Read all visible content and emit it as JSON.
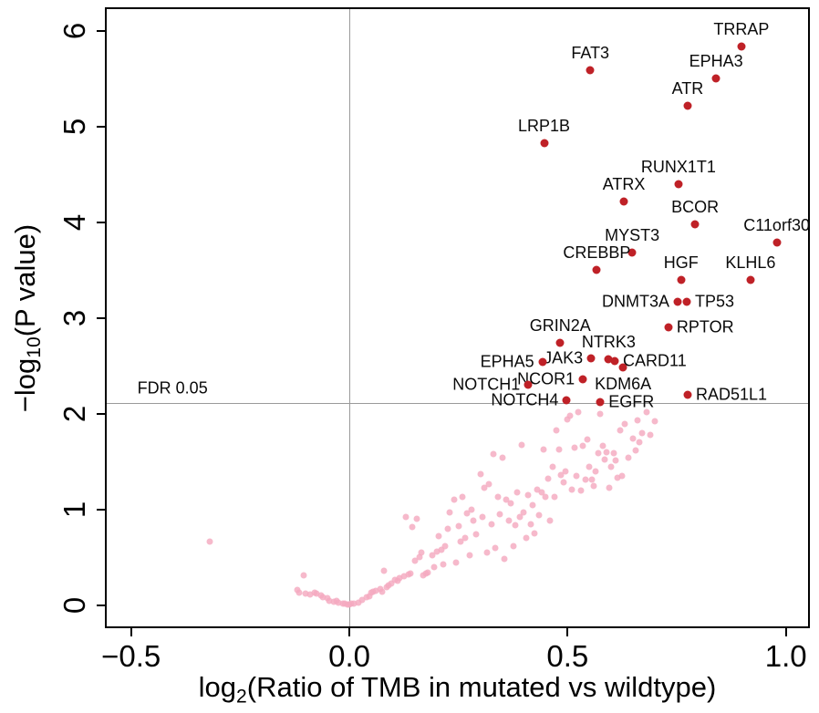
{
  "figure": {
    "colors": {
      "significant": "#bf2127",
      "nonsignificant": "#f4a9bf",
      "gridline": "#9a9a9a",
      "axis": "#000000"
    }
  },
  "chart_data": {
    "type": "scatter",
    "title": "",
    "xlabel_parts": {
      "pre": "log",
      "sub": "2",
      "post": "(Ratio of TMB in mutated vs wildtype)"
    },
    "ylabel_parts": {
      "pre": "−log",
      "sub": "10",
      "post": "(P value)"
    },
    "xlim": [
      -0.56,
      1.055
    ],
    "ylim": [
      -0.24,
      6.245
    ],
    "x_ticks": {
      "values": [
        -0.5,
        0.0,
        0.5,
        1.0
      ],
      "labels": [
        "−0.5",
        "0.0",
        "0.5",
        "1.0"
      ]
    },
    "y_ticks": {
      "values": [
        0,
        1,
        2,
        3,
        4,
        5,
        6
      ],
      "labels": [
        "0",
        "1",
        "2",
        "3",
        "4",
        "5",
        "6"
      ]
    },
    "reference_lines": {
      "vertical_x": 0,
      "fdr_y": 2.11
    },
    "fdr_annotation": {
      "text": "FDR 0.05",
      "x": -0.405,
      "y": 2.26
    },
    "legend_position": "none",
    "grid": "partial",
    "significant_genes": [
      {
        "name": "TRRAP",
        "x": 0.898,
        "y": 5.84,
        "label_pos": "above"
      },
      {
        "name": "FAT3",
        "x": 0.552,
        "y": 5.59,
        "label_pos": "above"
      },
      {
        "name": "EPHA3",
        "x": 0.84,
        "y": 5.5,
        "label_pos": "above"
      },
      {
        "name": "ATR",
        "x": 0.775,
        "y": 5.22,
        "label_pos": "above"
      },
      {
        "name": "LRP1B",
        "x": 0.446,
        "y": 4.83,
        "label_pos": "above"
      },
      {
        "name": "RUNX1T1",
        "x": 0.754,
        "y": 4.4,
        "label_pos": "above"
      },
      {
        "name": "ATRX",
        "x": 0.629,
        "y": 4.22,
        "label_pos": "above"
      },
      {
        "name": "BCOR",
        "x": 0.792,
        "y": 3.98,
        "label_pos": "above"
      },
      {
        "name": "C11orf30",
        "x": 0.979,
        "y": 3.79,
        "label_pos": "above"
      },
      {
        "name": "MYST3",
        "x": 0.648,
        "y": 3.68,
        "label_pos": "above"
      },
      {
        "name": "CREBBP",
        "x": 0.567,
        "y": 3.5,
        "label_pos": "above"
      },
      {
        "name": "HGF",
        "x": 0.76,
        "y": 3.4,
        "label_pos": "above"
      },
      {
        "name": "KLHL6",
        "x": 0.919,
        "y": 3.4,
        "label_pos": "above"
      },
      {
        "name": "DNMT3A",
        "x": 0.752,
        "y": 3.17,
        "label_pos": "left"
      },
      {
        "name": "TP53",
        "x": 0.773,
        "y": 3.17,
        "label_pos": "right"
      },
      {
        "name": "RPTOR",
        "x": 0.731,
        "y": 2.9,
        "label_pos": "right"
      },
      {
        "name": "GRIN2A",
        "x": 0.483,
        "y": 2.74,
        "label_pos": "above"
      },
      {
        "name": "NTRK3",
        "x": 0.594,
        "y": 2.57,
        "label_pos": "above"
      },
      {
        "name": "JAK3",
        "x": 0.554,
        "y": 2.58,
        "label_pos": "left"
      },
      {
        "name": "EPHA5",
        "x": 0.442,
        "y": 2.54,
        "label_pos": "left"
      },
      {
        "name": "CARD11",
        "x": 0.608,
        "y": 2.55,
        "label_pos": "right"
      },
      {
        "name": "KDM6A",
        "x": 0.627,
        "y": 2.48,
        "label_pos": "below"
      },
      {
        "name": "NCOR1",
        "x": 0.535,
        "y": 2.36,
        "label_pos": "left"
      },
      {
        "name": "NOTCH1",
        "x": 0.41,
        "y": 2.3,
        "label_pos": "left"
      },
      {
        "name": "RAD51L1",
        "x": 0.775,
        "y": 2.2,
        "label_pos": "right"
      },
      {
        "name": "NOTCH4",
        "x": 0.498,
        "y": 2.14,
        "label_pos": "left"
      },
      {
        "name": "EGFR",
        "x": 0.575,
        "y": 2.12,
        "label_pos": "right"
      }
    ],
    "background_points": [
      [
        -0.32,
        0.66
      ],
      [
        -0.12,
        0.16
      ],
      [
        -0.115,
        0.13
      ],
      [
        -0.105,
        0.31
      ],
      [
        -0.1,
        0.12
      ],
      [
        -0.09,
        0.11
      ],
      [
        -0.08,
        0.13
      ],
      [
        -0.075,
        0.12
      ],
      [
        -0.065,
        0.1
      ],
      [
        -0.06,
        0.08
      ],
      [
        -0.05,
        0.07
      ],
      [
        -0.045,
        0.05
      ],
      [
        -0.035,
        0.035
      ],
      [
        -0.03,
        0.05
      ],
      [
        -0.025,
        0.025
      ],
      [
        -0.015,
        0.02
      ],
      [
        -0.01,
        0.015
      ],
      [
        -0.005,
        0.005
      ],
      [
        0.0,
        0.01
      ],
      [
        0.005,
        0.02
      ],
      [
        0.01,
        0.015
      ],
      [
        0.02,
        0.03
      ],
      [
        0.03,
        0.055
      ],
      [
        0.04,
        0.08
      ],
      [
        0.045,
        0.09
      ],
      [
        0.05,
        0.13
      ],
      [
        0.055,
        0.145
      ],
      [
        0.06,
        0.155
      ],
      [
        0.07,
        0.17
      ],
      [
        0.075,
        0.145
      ],
      [
        0.08,
        0.36
      ],
      [
        0.085,
        0.19
      ],
      [
        0.09,
        0.21
      ],
      [
        0.095,
        0.23
      ],
      [
        0.105,
        0.26
      ],
      [
        0.11,
        0.255
      ],
      [
        0.115,
        0.28
      ],
      [
        0.125,
        0.3
      ],
      [
        0.13,
        0.92
      ],
      [
        0.135,
        0.32
      ],
      [
        0.14,
        0.33
      ],
      [
        0.145,
        0.82
      ],
      [
        0.15,
        0.46
      ],
      [
        0.155,
        0.9
      ],
      [
        0.16,
        0.5
      ],
      [
        0.165,
        0.55
      ],
      [
        0.17,
        0.31
      ],
      [
        0.175,
        0.33
      ],
      [
        0.18,
        0.34
      ],
      [
        0.19,
        0.52
      ],
      [
        0.195,
        0.4
      ],
      [
        0.2,
        0.56
      ],
      [
        0.205,
        0.72
      ],
      [
        0.21,
        0.58
      ],
      [
        0.215,
        0.43
      ],
      [
        0.22,
        0.62
      ],
      [
        0.225,
        0.8
      ],
      [
        0.23,
        0.97
      ],
      [
        0.24,
        1.1
      ],
      [
        0.245,
        0.45
      ],
      [
        0.25,
        0.83
      ],
      [
        0.255,
        0.66
      ],
      [
        0.26,
        1.13
      ],
      [
        0.265,
        0.7
      ],
      [
        0.27,
        0.96
      ],
      [
        0.275,
        0.52
      ],
      [
        0.28,
        1.0
      ],
      [
        0.285,
        0.88
      ],
      [
        0.29,
        0.74
      ],
      [
        0.3,
        1.37
      ],
      [
        0.305,
        0.92
      ],
      [
        0.31,
        1.23
      ],
      [
        0.315,
        0.55
      ],
      [
        0.32,
        1.26
      ],
      [
        0.325,
        0.85
      ],
      [
        0.33,
        1.58
      ],
      [
        0.335,
        0.6
      ],
      [
        0.34,
        1.13
      ],
      [
        0.345,
        0.95
      ],
      [
        0.35,
        1.54
      ],
      [
        0.355,
        0.48
      ],
      [
        0.36,
        1.1
      ],
      [
        0.365,
        0.88
      ],
      [
        0.37,
        1.06
      ],
      [
        0.375,
        0.62
      ],
      [
        0.38,
        0.84
      ],
      [
        0.385,
        1.18
      ],
      [
        0.39,
        0.92
      ],
      [
        0.395,
        1.67
      ],
      [
        0.4,
        0.97
      ],
      [
        0.405,
        0.7
      ],
      [
        0.41,
        1.15
      ],
      [
        0.415,
        0.85
      ],
      [
        0.42,
        1.05
      ],
      [
        0.425,
        0.75
      ],
      [
        0.43,
        1.21
      ],
      [
        0.435,
        0.94
      ],
      [
        0.44,
        1.18
      ],
      [
        0.445,
        1.63
      ],
      [
        0.45,
        1.13
      ],
      [
        0.455,
        1.32
      ],
      [
        0.46,
        0.88
      ],
      [
        0.465,
        1.45
      ],
      [
        0.47,
        1.13
      ],
      [
        0.475,
        1.83
      ],
      [
        0.48,
        1.63
      ],
      [
        0.485,
        1.36
      ],
      [
        0.49,
        1.28
      ],
      [
        0.495,
        1.4
      ],
      [
        0.5,
        1.94
      ],
      [
        0.505,
        1.98
      ],
      [
        0.51,
        1.21
      ],
      [
        0.515,
        1.65
      ],
      [
        0.52,
        1.35
      ],
      [
        0.525,
        2.02
      ],
      [
        0.53,
        1.2
      ],
      [
        0.535,
        1.66
      ],
      [
        0.54,
        1.31
      ],
      [
        0.545,
        1.73
      ],
      [
        0.55,
        1.45
      ],
      [
        0.555,
        1.31
      ],
      [
        0.56,
        1.25
      ],
      [
        0.565,
        1.4
      ],
      [
        0.57,
        1.59
      ],
      [
        0.575,
        2.0
      ],
      [
        0.58,
        1.66
      ],
      [
        0.585,
        1.52
      ],
      [
        0.59,
        1.6
      ],
      [
        0.595,
        1.23
      ],
      [
        0.6,
        1.45
      ],
      [
        0.605,
        1.59
      ],
      [
        0.61,
        1.51
      ],
      [
        0.615,
        1.33
      ],
      [
        0.62,
        1.83
      ],
      [
        0.625,
        1.35
      ],
      [
        0.63,
        1.89
      ],
      [
        0.64,
        1.54
      ],
      [
        0.65,
        1.74
      ],
      [
        0.655,
        1.62
      ],
      [
        0.66,
        1.93
      ],
      [
        0.665,
        1.7
      ],
      [
        0.67,
        1.8
      ],
      [
        0.68,
        2.02
      ],
      [
        0.69,
        1.78
      ],
      [
        0.7,
        1.92
      ]
    ]
  }
}
